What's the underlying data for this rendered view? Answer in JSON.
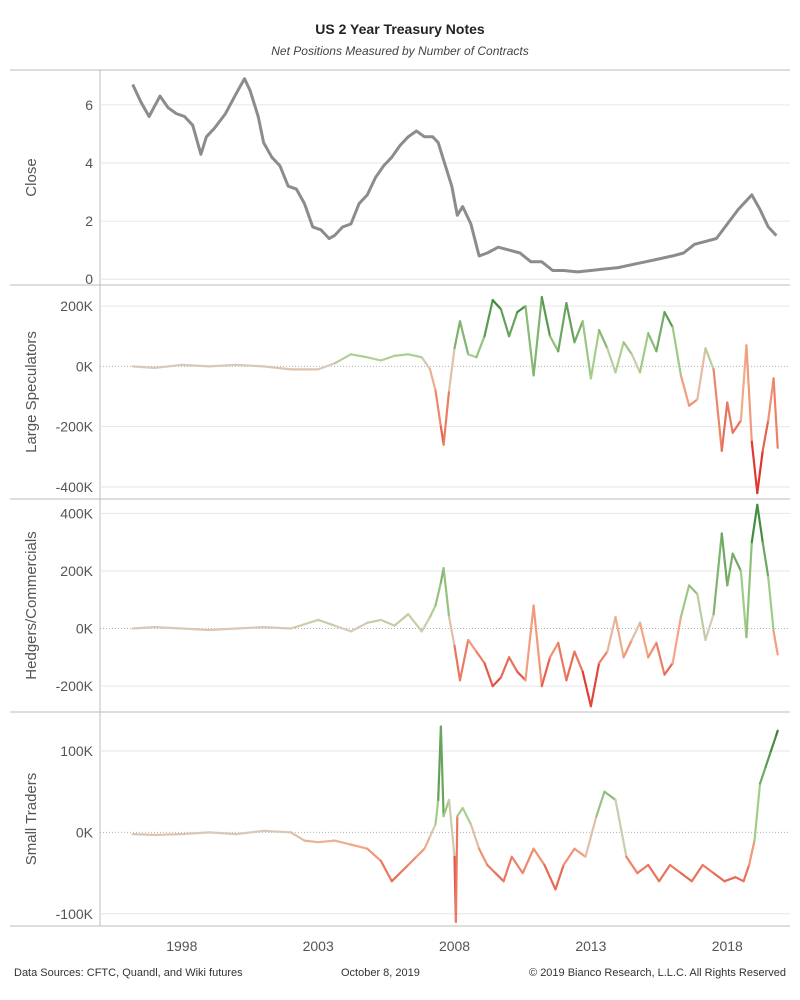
{
  "title": "US 2 Year Treasury Notes",
  "subtitle": "Net Positions Measured by Number of Contracts",
  "footer": {
    "sources": "Data Sources: CFTC, Quandl, and Wiki futures",
    "date": "October 8, 2019",
    "copyright": "© 2019 Bianco Research, L.L.C. All Rights Reserved"
  },
  "colors": {
    "close_line": "#8c8c8c",
    "positive_strong": "#2e7d32",
    "positive_light": "#a8d08d",
    "neutral": "#d9c9b8",
    "negative_light": "#f4a582",
    "negative_strong": "#d7191c",
    "gridline": "#e6e6e6",
    "zero_line": "#b0b0b0"
  },
  "chart_data": [
    {
      "type": "line",
      "ylabel": "Close",
      "yticks": [
        0,
        2,
        4,
        6
      ],
      "ytick_labels": [
        "0",
        "2",
        "4",
        "6"
      ],
      "ylim": [
        -0.2,
        7.2
      ],
      "xlim": [
        1995.0,
        2020.3
      ],
      "xticks": [
        1998,
        2003,
        2008,
        2013,
        2018
      ],
      "xtick_labels": [
        "1998",
        "2003",
        "2008",
        "2013",
        "2018"
      ],
      "x": [
        1996.2,
        1996.5,
        1996.8,
        1997.2,
        1997.5,
        1997.8,
        1998.1,
        1998.4,
        1998.7,
        1998.9,
        1999.2,
        1999.6,
        2000.0,
        2000.3,
        2000.5,
        2000.8,
        2001.0,
        2001.3,
        2001.6,
        2001.9,
        2002.2,
        2002.5,
        2002.8,
        2003.1,
        2003.4,
        2003.6,
        2003.9,
        2004.2,
        2004.5,
        2004.8,
        2005.1,
        2005.4,
        2005.7,
        2006.0,
        2006.3,
        2006.6,
        2006.9,
        2007.2,
        2007.4,
        2007.6,
        2007.9,
        2008.1,
        2008.3,
        2008.6,
        2008.9,
        2009.2,
        2009.6,
        2010.0,
        2010.4,
        2010.8,
        2011.2,
        2011.6,
        2012.0,
        2012.5,
        2013.0,
        2013.5,
        2014.0,
        2014.5,
        2015.0,
        2015.5,
        2016.0,
        2016.4,
        2016.8,
        2017.2,
        2017.6,
        2018.0,
        2018.4,
        2018.7,
        2018.9,
        2019.2,
        2019.5,
        2019.8
      ],
      "y": [
        6.7,
        6.1,
        5.6,
        6.3,
        5.9,
        5.7,
        5.6,
        5.3,
        4.3,
        4.9,
        5.2,
        5.7,
        6.4,
        6.9,
        6.5,
        5.6,
        4.7,
        4.2,
        3.9,
        3.2,
        3.1,
        2.6,
        1.8,
        1.7,
        1.4,
        1.5,
        1.8,
        1.9,
        2.6,
        2.9,
        3.5,
        3.9,
        4.2,
        4.6,
        4.9,
        5.1,
        4.9,
        4.9,
        4.7,
        4.1,
        3.2,
        2.2,
        2.5,
        1.9,
        0.8,
        0.9,
        1.1,
        1.0,
        0.9,
        0.6,
        0.6,
        0.3,
        0.3,
        0.25,
        0.3,
        0.35,
        0.4,
        0.5,
        0.6,
        0.7,
        0.8,
        0.9,
        1.2,
        1.3,
        1.4,
        1.9,
        2.4,
        2.7,
        2.9,
        2.4,
        1.8,
        1.5
      ]
    },
    {
      "type": "line",
      "ylabel": "Large Speculators",
      "yticks": [
        -400000,
        -200000,
        0,
        200000
      ],
      "ytick_labels": [
        "-400K",
        "-200K",
        "0K",
        "200K"
      ],
      "ylim": [
        -440000,
        270000
      ],
      "xlim": [
        1995.0,
        2020.3
      ],
      "x": [
        1996.2,
        1997.0,
        1998.0,
        1999.0,
        2000.0,
        2001.0,
        2002.0,
        2003.0,
        2003.6,
        2004.2,
        2004.8,
        2005.3,
        2005.8,
        2006.3,
        2006.8,
        2007.1,
        2007.3,
        2007.5,
        2007.6,
        2007.8,
        2008.0,
        2008.2,
        2008.5,
        2008.8,
        2009.1,
        2009.4,
        2009.7,
        2010.0,
        2010.3,
        2010.6,
        2010.9,
        2011.2,
        2011.5,
        2011.8,
        2012.1,
        2012.4,
        2012.7,
        2013.0,
        2013.3,
        2013.6,
        2013.9,
        2014.2,
        2014.5,
        2014.8,
        2015.1,
        2015.4,
        2015.7,
        2016.0,
        2016.3,
        2016.6,
        2016.9,
        2017.2,
        2017.5,
        2017.8,
        2018.0,
        2018.2,
        2018.5,
        2018.7,
        2018.9,
        2019.1,
        2019.3,
        2019.5,
        2019.7,
        2019.85
      ],
      "y": [
        0,
        -5000,
        5000,
        0,
        5000,
        0,
        -10000,
        -10000,
        10000,
        40000,
        30000,
        20000,
        35000,
        40000,
        30000,
        -10000,
        -80000,
        -200000,
        -260000,
        -80000,
        60000,
        150000,
        40000,
        30000,
        100000,
        220000,
        190000,
        100000,
        180000,
        200000,
        -30000,
        230000,
        100000,
        50000,
        210000,
        80000,
        150000,
        -40000,
        120000,
        60000,
        -20000,
        80000,
        40000,
        -20000,
        110000,
        50000,
        180000,
        130000,
        -30000,
        -130000,
        -110000,
        60000,
        -10000,
        -280000,
        -120000,
        -220000,
        -180000,
        70000,
        -250000,
        -420000,
        -280000,
        -180000,
        -40000,
        -270000
      ]
    },
    {
      "type": "line",
      "ylabel": "Hedgers/Commercials",
      "yticks": [
        -200000,
        0,
        200000,
        400000
      ],
      "ytick_labels": [
        "-200K",
        "0K",
        "200K",
        "400K"
      ],
      "ylim": [
        -290000,
        450000
      ],
      "xlim": [
        1995.0,
        2020.3
      ],
      "x": [
        1996.2,
        1997.0,
        1998.0,
        1999.0,
        2000.0,
        2001.0,
        2002.0,
        2003.0,
        2003.6,
        2004.2,
        2004.8,
        2005.3,
        2005.8,
        2006.3,
        2006.8,
        2007.1,
        2007.3,
        2007.5,
        2007.6,
        2007.8,
        2008.0,
        2008.2,
        2008.5,
        2008.8,
        2009.1,
        2009.4,
        2009.7,
        2010.0,
        2010.3,
        2010.6,
        2010.9,
        2011.2,
        2011.5,
        2011.8,
        2012.1,
        2012.4,
        2012.7,
        2013.0,
        2013.3,
        2013.6,
        2013.9,
        2014.2,
        2014.5,
        2014.8,
        2015.1,
        2015.4,
        2015.7,
        2016.0,
        2016.3,
        2016.6,
        2016.9,
        2017.2,
        2017.5,
        2017.8,
        2018.0,
        2018.2,
        2018.5,
        2018.7,
        2018.9,
        2019.1,
        2019.3,
        2019.5,
        2019.7,
        2019.85
      ],
      "y": [
        0,
        5000,
        0,
        -5000,
        0,
        5000,
        0,
        30000,
        10000,
        -10000,
        20000,
        30000,
        10000,
        50000,
        -10000,
        40000,
        80000,
        160000,
        210000,
        40000,
        -60000,
        -180000,
        -40000,
        -80000,
        -120000,
        -200000,
        -170000,
        -100000,
        -150000,
        -180000,
        80000,
        -200000,
        -100000,
        -50000,
        -180000,
        -80000,
        -150000,
        -270000,
        -120000,
        -80000,
        40000,
        -100000,
        -40000,
        20000,
        -100000,
        -50000,
        -160000,
        -120000,
        40000,
        150000,
        120000,
        -40000,
        50000,
        330000,
        150000,
        260000,
        200000,
        -30000,
        300000,
        430000,
        300000,
        180000,
        -10000,
        -90000
      ]
    },
    {
      "type": "line",
      "ylabel": "Small Traders",
      "yticks": [
        -100000,
        0,
        100000
      ],
      "ytick_labels": [
        "-100K",
        "0K",
        "100K"
      ],
      "ylim": [
        -115000,
        148000
      ],
      "xlim": [
        1995.0,
        2020.3
      ],
      "x": [
        1996.2,
        1997.0,
        1998.0,
        1999.0,
        2000.0,
        2001.0,
        2002.0,
        2002.5,
        2003.0,
        2003.6,
        2004.2,
        2004.8,
        2005.3,
        2005.7,
        2006.0,
        2006.3,
        2006.6,
        2006.9,
        2007.1,
        2007.3,
        2007.4,
        2007.5,
        2007.6,
        2007.8,
        2008.0,
        2008.05,
        2008.1,
        2008.3,
        2008.6,
        2008.9,
        2009.2,
        2009.5,
        2009.8,
        2010.1,
        2010.5,
        2010.9,
        2011.3,
        2011.7,
        2012.0,
        2012.4,
        2012.8,
        2013.2,
        2013.5,
        2013.9,
        2014.3,
        2014.7,
        2015.1,
        2015.5,
        2015.9,
        2016.3,
        2016.7,
        2017.1,
        2017.5,
        2017.9,
        2018.3,
        2018.6,
        2018.8,
        2019.0,
        2019.2,
        2019.4,
        2019.6,
        2019.8,
        2019.85
      ],
      "y": [
        -2000,
        -3000,
        -2000,
        0,
        -2000,
        2000,
        0,
        -10000,
        -12000,
        -10000,
        -15000,
        -20000,
        -35000,
        -60000,
        -50000,
        -40000,
        -30000,
        -20000,
        -5000,
        10000,
        40000,
        130000,
        20000,
        40000,
        -30000,
        -110000,
        20000,
        30000,
        10000,
        -20000,
        -40000,
        -50000,
        -60000,
        -30000,
        -50000,
        -20000,
        -40000,
        -70000,
        -40000,
        -20000,
        -30000,
        20000,
        50000,
        40000,
        -30000,
        -50000,
        -40000,
        -60000,
        -40000,
        -50000,
        -60000,
        -40000,
        -50000,
        -60000,
        -55000,
        -60000,
        -40000,
        -10000,
        60000,
        80000,
        100000,
        120000,
        125000
      ]
    }
  ]
}
